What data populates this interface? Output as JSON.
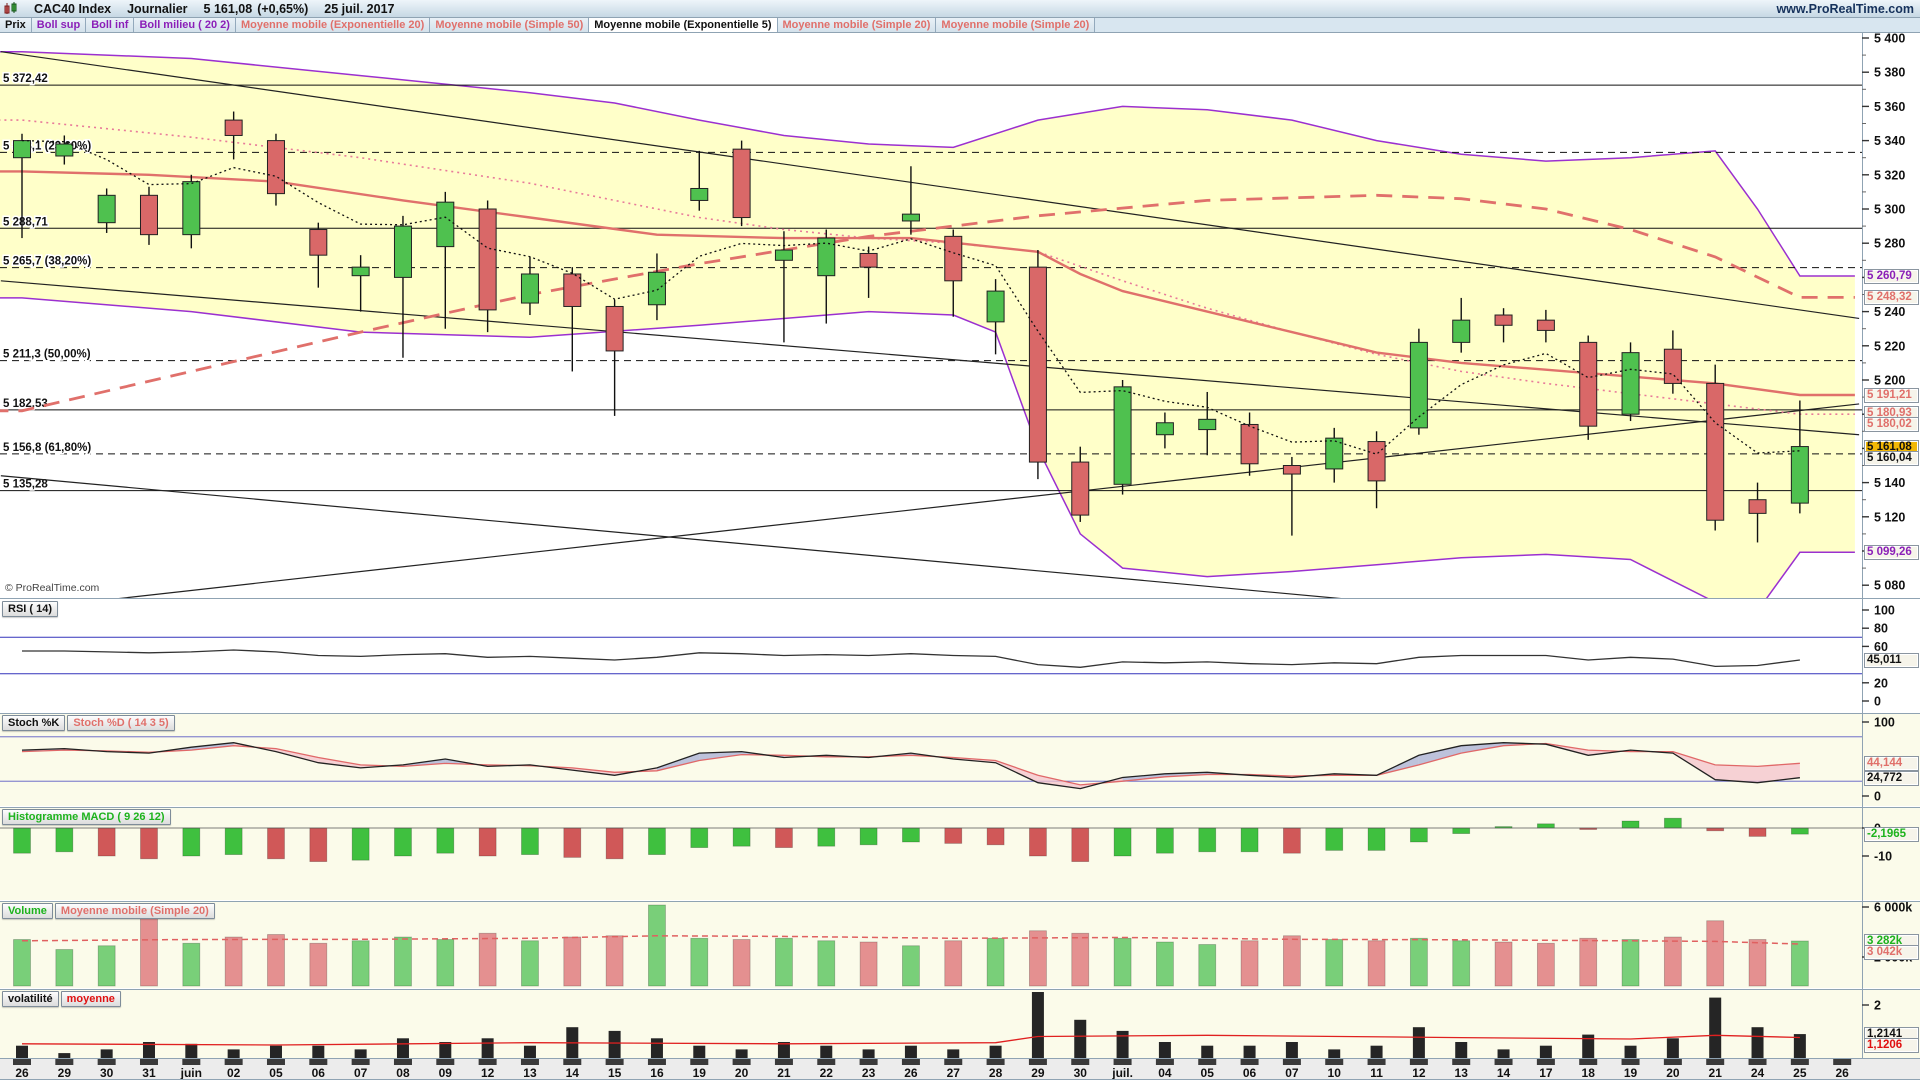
{
  "header": {
    "instrument": "CAC40 Index",
    "timeframe": "Journalier",
    "last_price": "5 161,08",
    "change": "(+0,65%)",
    "date": "25 juil. 2017",
    "site": "www.ProRealTime.com",
    "watermark": "© ProRealTime.com"
  },
  "icons": {
    "app": "candlestick-chart-icon"
  },
  "colors": {
    "purple": "#8b1fb8",
    "salmon": "#e0706b",
    "pink_dotted": "#e87a9a",
    "black": "#111111",
    "green": "#1db31d",
    "red": "#e01010",
    "candle_up": "#4fc14f",
    "candle_down": "#d96868",
    "band_fill": "#ffffc9",
    "gold_bg": "#f2b806",
    "blue_line": "#3333bb"
  },
  "legend": {
    "items": [
      {
        "label": "Prix",
        "color": "#111111"
      },
      {
        "label": "Boll sup",
        "color": "#8b1fb8"
      },
      {
        "label": "Boll inf",
        "color": "#8b1fb8"
      },
      {
        "label": "Boll milieu ( 20 2)",
        "color": "#8b1fb8"
      },
      {
        "label": "Moyenne mobile (Exponentielle 20)",
        "color": "#e0706b"
      },
      {
        "label": "Moyenne mobile (Simple 50)",
        "color": "#e0706b"
      },
      {
        "label": "Moyenne mobile (Exponentielle 5)",
        "color": "#111111",
        "active": true
      },
      {
        "label": "Moyenne mobile (Simple 20)",
        "color": "#e0706b"
      },
      {
        "label": "Moyenne mobile (Simple 20)",
        "color": "#e0706b"
      }
    ]
  },
  "panels": {
    "rsi": {
      "chips": [
        {
          "label": "RSI ( 14)",
          "color": "#111111"
        }
      ],
      "ticks": [
        100,
        80,
        60,
        20,
        0
      ]
    },
    "stoch": {
      "chips": [
        {
          "label": "Stoch %K",
          "color": "#111111"
        },
        {
          "label": "Stoch %D ( 14 3 5)",
          "color": "#e0706b"
        }
      ],
      "ticks": [
        100,
        0
      ]
    },
    "macd": {
      "chips": [
        {
          "label": "Histogramme MACD ( 9 26 12)",
          "color": "#1db31d"
        }
      ],
      "ticks": [
        0,
        -10
      ]
    },
    "volume": {
      "chips": [
        {
          "label": "Volume",
          "color": "#1db31d"
        },
        {
          "label": "Moyenne mobile (Simple 20)",
          "color": "#e0706b"
        }
      ],
      "ticks": [
        {
          "v": 6000,
          "t": "6 000k"
        },
        {
          "v": 2000,
          "t": "2 000k"
        }
      ]
    },
    "vola": {
      "chips": [
        {
          "label": "volatilité",
          "color": "#111111"
        },
        {
          "label": "moyenne",
          "color": "#e01010"
        }
      ],
      "ticks": [
        {
          "v": 2,
          "t": "2"
        }
      ]
    }
  },
  "price_axis": {
    "max": 5400,
    "min": 5080,
    "step": 20,
    "boxes_main": [
      {
        "text": "5 260,79",
        "val": 5260.79,
        "color": "#8b1fb8"
      },
      {
        "text": "5 248,32",
        "val": 5248.32,
        "color": "#e0706b"
      },
      {
        "text": "5 191,21",
        "val": 5191.21,
        "color": "#e0706b"
      },
      {
        "text": "5 180,93",
        "val": 5180.93,
        "color": "#e0706b"
      },
      {
        "text": "5 180,02",
        "val": 5180.02,
        "color": "#e0706b"
      },
      {
        "text": "5 161,08",
        "val": 5161.08,
        "color": "#111111",
        "bg": "gold"
      },
      {
        "text": "5 160,04",
        "val": 5160.04,
        "color": "#111111"
      },
      {
        "text": "5 099,26",
        "val": 5099.26,
        "color": "#8b1fb8"
      }
    ],
    "boxes_rsi": [
      {
        "text": "45,011",
        "val": 45.011,
        "color": "#111111"
      }
    ],
    "boxes_stoch": [
      {
        "text": "44,144",
        "val": 44.144,
        "color": "#e0706b"
      },
      {
        "text": "24,772",
        "val": 24.772,
        "color": "#111111"
      }
    ],
    "boxes_macd": [
      {
        "text": "-2,1965",
        "val": -2.1965,
        "color": "#1db31d"
      }
    ],
    "boxes_vol": [
      {
        "text": "3 282k",
        "val": 3282,
        "color": "#1db31d"
      },
      {
        "text": "3 042k",
        "val": 3042,
        "color": "#e0706b"
      }
    ],
    "boxes_vola": [
      {
        "text": "1,2141",
        "val": 1.2141,
        "color": "#111111"
      },
      {
        "text": "1,1206",
        "val": 1.1206,
        "color": "#e01010"
      }
    ]
  },
  "chart_data": {
    "type": "candlestick+indicators",
    "title": "CAC40 Index Journalier",
    "x_labels": [
      "26",
      "29",
      "30",
      "31",
      "juin",
      "02",
      "05",
      "06",
      "07",
      "08",
      "09",
      "12",
      "13",
      "14",
      "15",
      "16",
      "19",
      "20",
      "21",
      "22",
      "23",
      "26",
      "27",
      "28",
      "29",
      "30",
      "juil.",
      "04",
      "05",
      "06",
      "07",
      "10",
      "11",
      "12",
      "13",
      "14",
      "17",
      "18",
      "19",
      "20",
      "21",
      "24",
      "25",
      "26"
    ],
    "candles": [
      [
        5330,
        5344,
        5283,
        5340
      ],
      [
        5331,
        5343,
        5326,
        5338
      ],
      [
        5292,
        5312,
        5286,
        5308
      ],
      [
        5308,
        5313,
        5279,
        5285
      ],
      [
        5285,
        5320,
        5277,
        5316
      ],
      [
        5352,
        5357,
        5329,
        5343
      ],
      [
        5340,
        5344,
        5302,
        5309
      ],
      [
        5288,
        5292,
        5254,
        5273
      ],
      [
        5261,
        5273,
        5240,
        5266
      ],
      [
        5260,
        5296,
        5213,
        5290
      ],
      [
        5278,
        5310,
        5230,
        5304
      ],
      [
        5300,
        5305,
        5228,
        5241
      ],
      [
        5245,
        5272,
        5238,
        5262
      ],
      [
        5262,
        5266,
        5205,
        5243
      ],
      [
        5243,
        5247,
        5179,
        5217
      ],
      [
        5244,
        5274,
        5235,
        5263
      ],
      [
        5305,
        5334,
        5299,
        5312
      ],
      [
        5335,
        5340,
        5290,
        5295
      ],
      [
        5270,
        5287,
        5222,
        5276
      ],
      [
        5261,
        5288,
        5233,
        5283
      ],
      [
        5274,
        5278,
        5248,
        5266
      ],
      [
        5293,
        5325,
        5285,
        5297
      ],
      [
        5284,
        5288,
        5237,
        5258
      ],
      [
        5234,
        5259,
        5215,
        5252
      ],
      [
        5266,
        5276,
        5142,
        5152
      ],
      [
        5152,
        5161,
        5117,
        5121
      ],
      [
        5139,
        5200,
        5133,
        5196
      ],
      [
        5168,
        5181,
        5160,
        5175
      ],
      [
        5171,
        5193,
        5156,
        5177
      ],
      [
        5174,
        5181,
        5144,
        5151
      ],
      [
        5150,
        5155,
        5109,
        5145
      ],
      [
        5148,
        5172,
        5140,
        5166
      ],
      [
        5164,
        5170,
        5125,
        5141
      ],
      [
        5172,
        5230,
        5168,
        5222
      ],
      [
        5222,
        5248,
        5216,
        5235
      ],
      [
        5238,
        5242,
        5222,
        5232
      ],
      [
        5235,
        5241,
        5222,
        5229
      ],
      [
        5222,
        5226,
        5165,
        5173
      ],
      [
        5180,
        5222,
        5176,
        5216
      ],
      [
        5218,
        5229,
        5192,
        5198
      ],
      [
        5198,
        5209,
        5112,
        5118
      ],
      [
        5130,
        5140,
        5105,
        5122
      ],
      [
        5128,
        5188,
        5122,
        5161.08
      ]
    ],
    "levels": [
      {
        "p": 5372.42,
        "label": "5 372,42",
        "style": "solid"
      },
      {
        "p": 5333.1,
        "label": "5 333,1 (23,60%)",
        "style": "dashed"
      },
      {
        "p": 5288.71,
        "label": "5 288,71",
        "style": "solid"
      },
      {
        "p": 5265.7,
        "label": "5 265,7 (38,20%)",
        "style": "dashed"
      },
      {
        "p": 5211.3,
        "label": "5 211,3 (50,00%)",
        "style": "dashed"
      },
      {
        "p": 5182.53,
        "label": "5 182,53",
        "style": "solid"
      },
      {
        "p": 5156.8,
        "label": "5 156,8 (61,80%)",
        "style": "dashed"
      },
      {
        "p": 5135.28,
        "label": "5 135,28",
        "style": "solid"
      }
    ],
    "trendlines": [
      {
        "pts": [
          [
            -0.5,
            5392
          ],
          [
            43.4,
            5236
          ]
        ]
      },
      {
        "pts": [
          [
            -0.5,
            5258
          ],
          [
            43.4,
            5168
          ]
        ]
      },
      {
        "pts": [
          [
            1.5,
            5070
          ],
          [
            43.4,
            5186
          ]
        ]
      },
      {
        "pts": [
          [
            -0.5,
            5144
          ],
          [
            33,
            5068
          ]
        ]
      }
    ],
    "overlays": {
      "boll_sup": [
        [
          0,
          5392
        ],
        [
          4,
          5388
        ],
        [
          8,
          5378
        ],
        [
          12,
          5368
        ],
        [
          14,
          5362
        ],
        [
          16,
          5352
        ],
        [
          18,
          5343
        ],
        [
          20,
          5338
        ],
        [
          22,
          5336
        ],
        [
          24,
          5352
        ],
        [
          26,
          5360
        ],
        [
          28,
          5358
        ],
        [
          30,
          5352
        ],
        [
          32,
          5340
        ],
        [
          34,
          5332
        ],
        [
          36,
          5328
        ],
        [
          38,
          5330
        ],
        [
          40,
          5334
        ],
        [
          41,
          5300
        ],
        [
          42,
          5260.79
        ]
      ],
      "boll_inf": [
        [
          0,
          5248
        ],
        [
          4,
          5240
        ],
        [
          8,
          5228
        ],
        [
          12,
          5225
        ],
        [
          16,
          5232
        ],
        [
          20,
          5240
        ],
        [
          22,
          5238
        ],
        [
          23,
          5228
        ],
        [
          24,
          5160
        ],
        [
          25,
          5110
        ],
        [
          26,
          5090
        ],
        [
          28,
          5085
        ],
        [
          30,
          5088
        ],
        [
          32,
          5092
        ],
        [
          34,
          5096
        ],
        [
          36,
          5098
        ],
        [
          38,
          5095
        ],
        [
          40,
          5070
        ],
        [
          41,
          5065
        ],
        [
          42,
          5099.26
        ]
      ],
      "ema20": [
        [
          0,
          5322
        ],
        [
          3,
          5320
        ],
        [
          6,
          5316
        ],
        [
          9,
          5305
        ],
        [
          12,
          5295
        ],
        [
          15,
          5285
        ],
        [
          18,
          5283
        ],
        [
          21,
          5283
        ],
        [
          24,
          5275
        ],
        [
          25,
          5262
        ],
        [
          26,
          5252
        ],
        [
          28,
          5240
        ],
        [
          30,
          5228
        ],
        [
          32,
          5216
        ],
        [
          34,
          5210
        ],
        [
          36,
          5206
        ],
        [
          38,
          5202
        ],
        [
          40,
          5198
        ],
        [
          42,
          5191.21
        ]
      ],
      "sma50": [
        [
          0,
          5182
        ],
        [
          4,
          5205
        ],
        [
          8,
          5228
        ],
        [
          12,
          5250
        ],
        [
          16,
          5268
        ],
        [
          20,
          5284
        ],
        [
          24,
          5296
        ],
        [
          28,
          5305
        ],
        [
          32,
          5308
        ],
        [
          34,
          5306
        ],
        [
          36,
          5300
        ],
        [
          38,
          5288
        ],
        [
          40,
          5272
        ],
        [
          42,
          5248.32
        ]
      ],
      "sma20": [
        [
          0,
          5352
        ],
        [
          4,
          5342
        ],
        [
          8,
          5330
        ],
        [
          12,
          5315
        ],
        [
          14,
          5305
        ],
        [
          16,
          5295
        ],
        [
          18,
          5288
        ],
        [
          20,
          5283
        ],
        [
          22,
          5280
        ],
        [
          24,
          5275
        ],
        [
          26,
          5258
        ],
        [
          28,
          5242
        ],
        [
          30,
          5228
        ],
        [
          32,
          5215
        ],
        [
          34,
          5205
        ],
        [
          36,
          5198
        ],
        [
          38,
          5192
        ],
        [
          40,
          5186
        ],
        [
          42,
          5180.02
        ]
      ]
    },
    "rsi": {
      "values": [
        55,
        55,
        54,
        53,
        54,
        56,
        54,
        50,
        49,
        51,
        52,
        48,
        49,
        47,
        45,
        48,
        53,
        52,
        50,
        51,
        50,
        52,
        50,
        49,
        40,
        37,
        43,
        42,
        43,
        41,
        40,
        42,
        41,
        48,
        50,
        50,
        50,
        45,
        48,
        46,
        38,
        39,
        45.011
      ],
      "lines": [
        70,
        30
      ]
    },
    "stoch": {
      "k": [
        62,
        64,
        60,
        58,
        66,
        72,
        60,
        45,
        38,
        42,
        50,
        40,
        42,
        35,
        28,
        38,
        58,
        60,
        52,
        55,
        52,
        58,
        50,
        45,
        18,
        10,
        25,
        30,
        32,
        28,
        25,
        30,
        28,
        55,
        68,
        72,
        70,
        55,
        62,
        58,
        22,
        18,
        24.772
      ],
      "d": [
        60,
        62,
        61,
        59,
        62,
        68,
        64,
        52,
        42,
        40,
        44,
        42,
        41,
        38,
        32,
        34,
        48,
        56,
        55,
        53,
        53,
        55,
        52,
        48,
        28,
        15,
        20,
        26,
        29,
        29,
        27,
        28,
        28,
        42,
        58,
        68,
        71,
        62,
        60,
        60,
        42,
        40,
        44.144
      ],
      "lines": [
        80,
        20
      ]
    },
    "macd": [
      -9,
      -8.5,
      -10,
      -11,
      -10,
      -9.5,
      -11,
      -12,
      -11.5,
      -10,
      -9,
      -10,
      -9.5,
      -10.5,
      -11,
      -9.5,
      -7,
      -6.5,
      -7,
      -6.5,
      -6,
      -5,
      -5.5,
      -6,
      -10,
      -12,
      -10,
      -9,
      -8.5,
      -8.5,
      -9,
      -8,
      -8,
      -5,
      -2,
      0.5,
      1.5,
      0,
      2.5,
      3.5,
      -1,
      -3,
      -2.1965
    ],
    "volume": [
      3400,
      2600,
      2900,
      5600,
      3100,
      3600,
      3800,
      3100,
      3300,
      3600,
      3400,
      3900,
      3300,
      3600,
      3700,
      6600,
      3500,
      3400,
      3500,
      3300,
      3200,
      2900,
      3300,
      3500,
      4100,
      3900,
      3500,
      3200,
      3000,
      3300,
      3700,
      3400,
      3300,
      3500,
      3300,
      3200,
      3100,
      3500,
      3400,
      3600,
      4900,
      3400,
      3282
    ],
    "volume_ma": [
      [
        0,
        3300
      ],
      [
        4,
        3400
      ],
      [
        8,
        3420
      ],
      [
        12,
        3500
      ],
      [
        15,
        3700
      ],
      [
        18,
        3650
      ],
      [
        22,
        3500
      ],
      [
        26,
        3560
      ],
      [
        30,
        3420
      ],
      [
        34,
        3380
      ],
      [
        38,
        3300
      ],
      [
        40,
        3250
      ],
      [
        42,
        3042
      ]
    ],
    "volatility": [
      0.9,
      0.7,
      0.8,
      1.0,
      0.95,
      0.8,
      0.9,
      0.9,
      0.8,
      1.1,
      1.0,
      1.1,
      0.9,
      1.4,
      1.3,
      1.1,
      0.9,
      0.8,
      1.0,
      0.9,
      0.8,
      0.9,
      0.8,
      0.9,
      2.4,
      1.6,
      1.3,
      1.0,
      0.9,
      0.9,
      1.0,
      0.8,
      0.9,
      1.4,
      1.0,
      0.8,
      0.9,
      1.2,
      0.9,
      1.1,
      2.2,
      1.4,
      1.2141
    ],
    "volatility_ma": [
      [
        0,
        0.95
      ],
      [
        6,
        0.92
      ],
      [
        12,
        0.98
      ],
      [
        18,
        0.95
      ],
      [
        23,
        0.98
      ],
      [
        24,
        1.15
      ],
      [
        28,
        1.18
      ],
      [
        34,
        1.12
      ],
      [
        38,
        1.08
      ],
      [
        40,
        1.18
      ],
      [
        42,
        1.1206
      ]
    ]
  }
}
